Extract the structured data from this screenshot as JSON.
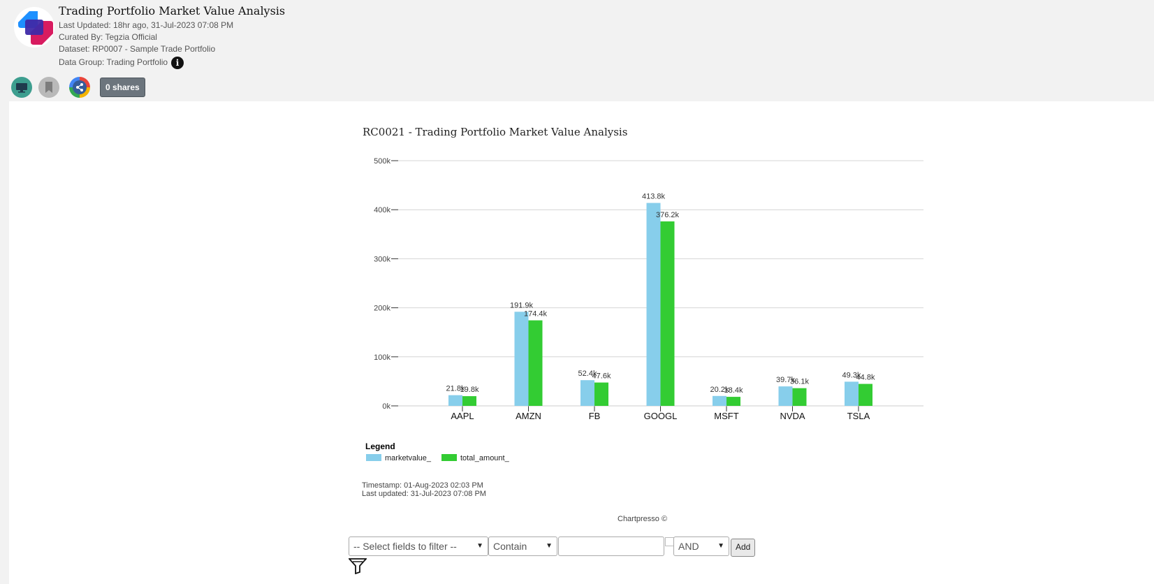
{
  "header": {
    "title": "Trading Portfolio Market Value Analysis",
    "last_updated": "Last Updated: 18hr ago, 31-Jul-2023 07:08 PM",
    "curated_by": "Curated By: Tegzia Official",
    "dataset": "Dataset: RP0007 - Sample Trade Portfolio",
    "data_group": "Data Group: Trading Portfolio",
    "info_icon": "i",
    "shares_label": "0 shares",
    "icons": [
      "monitor-icon",
      "bookmark-icon",
      "share-icon",
      "info-icon"
    ]
  },
  "chart_data": {
    "type": "bar",
    "title": "RC0021 - Trading Portfolio Market Value Analysis",
    "categories": [
      "AAPL",
      "AMZN",
      "FB",
      "GOOGL",
      "MSFT",
      "NVDA",
      "TSLA"
    ],
    "series": [
      {
        "name": "marketvalue_",
        "color": "#87ceeb",
        "values": [
          21800,
          191900,
          52400,
          413800,
          20200,
          39700,
          49300
        ],
        "labels": [
          "21.8k",
          "191.9k",
          "52.4k",
          "413.8k",
          "20.2k",
          "39.7k",
          "49.3k"
        ]
      },
      {
        "name": "total_amount_",
        "color": "#33cc33",
        "values": [
          19800,
          174400,
          47600,
          376200,
          18400,
          36100,
          44800
        ],
        "labels": [
          "19.8k",
          "174.4k",
          "47.6k",
          "376.2k",
          "18.4k",
          "36.1k",
          "44.8k"
        ]
      }
    ],
    "yticks": [
      {
        "value": 0,
        "label": "0k"
      },
      {
        "value": 100000,
        "label": "100k"
      },
      {
        "value": 200000,
        "label": "200k"
      },
      {
        "value": 300000,
        "label": "300k"
      },
      {
        "value": 400000,
        "label": "400k"
      },
      {
        "value": 500000,
        "label": "500k"
      }
    ],
    "ylim": [
      0,
      500000
    ],
    "grid": true,
    "legend_title": "Legend",
    "legend_placement": "bottom-left"
  },
  "footer": {
    "timestamp": "Timestamp: 01-Aug-2023 02:03 PM",
    "last_updated": "Last updated: 31-Jul-2023 07:08 PM",
    "credit": "Chartpresso ©"
  },
  "filter": {
    "field_select": "-- Select fields to filter --",
    "operator_select": "Contain",
    "value_input": "",
    "logic_select": "AND",
    "add_label": "Add",
    "filter_icon": "filter-icon"
  }
}
